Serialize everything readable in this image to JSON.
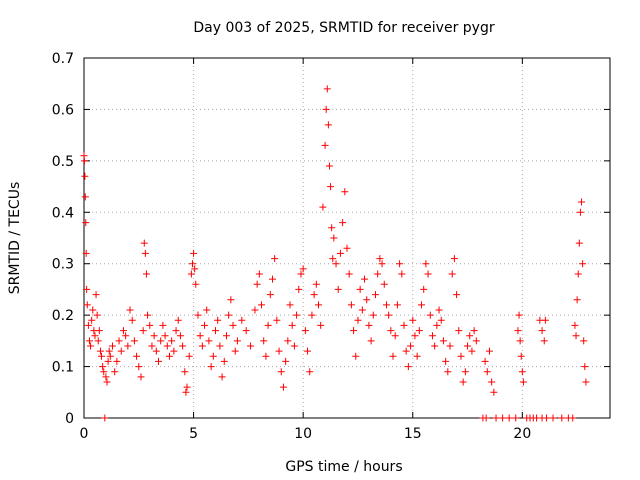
{
  "chart_data": {
    "type": "scatter",
    "title": "Day 003 of 2025, SRMTID for receiver pygr",
    "xlabel": "GPS time / hours",
    "ylabel": "SRMTID / TECUs",
    "xlim": [
      0,
      24
    ],
    "ylim": [
      0,
      0.7
    ],
    "grid": true,
    "x_ticks": [
      0,
      5,
      10,
      15,
      20
    ],
    "y_ticks": [
      0,
      0.1,
      0.2,
      0.3,
      0.4,
      0.5,
      0.6,
      0.7
    ],
    "marker": "+",
    "marker_color": "#ff0000",
    "series": [
      {
        "name": "SRMTID",
        "points": [
          [
            0.0,
            0.51
          ],
          [
            0.02,
            0.5
          ],
          [
            0.04,
            0.47
          ],
          [
            0.06,
            0.43
          ],
          [
            0.08,
            0.38
          ],
          [
            0.1,
            0.32
          ],
          [
            0.12,
            0.25
          ],
          [
            0.15,
            0.22
          ],
          [
            0.2,
            0.18
          ],
          [
            0.25,
            0.15
          ],
          [
            0.3,
            0.14
          ],
          [
            0.35,
            0.19
          ],
          [
            0.4,
            0.21
          ],
          [
            0.45,
            0.17
          ],
          [
            0.5,
            0.16
          ],
          [
            0.55,
            0.24
          ],
          [
            0.6,
            0.2
          ],
          [
            0.65,
            0.15
          ],
          [
            0.7,
            0.17
          ],
          [
            0.75,
            0.13
          ],
          [
            0.8,
            0.12
          ],
          [
            0.85,
            0.1
          ],
          [
            0.9,
            0.09
          ],
          [
            0.95,
            0.0
          ],
          [
            1.0,
            0.08
          ],
          [
            1.05,
            0.07
          ],
          [
            1.1,
            0.11
          ],
          [
            1.15,
            0.13
          ],
          [
            1.2,
            0.12
          ],
          [
            1.3,
            0.14
          ],
          [
            1.4,
            0.09
          ],
          [
            1.5,
            0.11
          ],
          [
            1.6,
            0.15
          ],
          [
            1.7,
            0.13
          ],
          [
            1.8,
            0.17
          ],
          [
            1.9,
            0.16
          ],
          [
            2.0,
            0.14
          ],
          [
            2.1,
            0.21
          ],
          [
            2.2,
            0.19
          ],
          [
            2.3,
            0.15
          ],
          [
            2.4,
            0.12
          ],
          [
            2.5,
            0.1
          ],
          [
            2.6,
            0.08
          ],
          [
            2.7,
            0.17
          ],
          [
            2.75,
            0.34
          ],
          [
            2.8,
            0.32
          ],
          [
            2.85,
            0.28
          ],
          [
            2.9,
            0.2
          ],
          [
            3.0,
            0.18
          ],
          [
            3.1,
            0.14
          ],
          [
            3.2,
            0.16
          ],
          [
            3.3,
            0.13
          ],
          [
            3.4,
            0.11
          ],
          [
            3.5,
            0.15
          ],
          [
            3.6,
            0.18
          ],
          [
            3.7,
            0.16
          ],
          [
            3.8,
            0.14
          ],
          [
            3.9,
            0.12
          ],
          [
            4.0,
            0.15
          ],
          [
            4.1,
            0.13
          ],
          [
            4.2,
            0.17
          ],
          [
            4.3,
            0.19
          ],
          [
            4.4,
            0.16
          ],
          [
            4.5,
            0.14
          ],
          [
            4.6,
            0.09
          ],
          [
            4.65,
            0.05
          ],
          [
            4.7,
            0.06
          ],
          [
            4.8,
            0.12
          ],
          [
            4.9,
            0.28
          ],
          [
            4.95,
            0.3
          ],
          [
            5.0,
            0.32
          ],
          [
            5.05,
            0.29
          ],
          [
            5.1,
            0.26
          ],
          [
            5.2,
            0.2
          ],
          [
            5.3,
            0.16
          ],
          [
            5.4,
            0.14
          ],
          [
            5.5,
            0.18
          ],
          [
            5.6,
            0.21
          ],
          [
            5.7,
            0.15
          ],
          [
            5.8,
            0.1
          ],
          [
            5.9,
            0.12
          ],
          [
            6.0,
            0.17
          ],
          [
            6.1,
            0.19
          ],
          [
            6.2,
            0.14
          ],
          [
            6.3,
            0.08
          ],
          [
            6.4,
            0.11
          ],
          [
            6.5,
            0.16
          ],
          [
            6.6,
            0.2
          ],
          [
            6.7,
            0.23
          ],
          [
            6.8,
            0.18
          ],
          [
            6.9,
            0.13
          ],
          [
            7.0,
            0.15
          ],
          [
            7.2,
            0.19
          ],
          [
            7.4,
            0.17
          ],
          [
            7.6,
            0.14
          ],
          [
            7.8,
            0.21
          ],
          [
            7.9,
            0.26
          ],
          [
            8.0,
            0.28
          ],
          [
            8.1,
            0.22
          ],
          [
            8.2,
            0.15
          ],
          [
            8.3,
            0.12
          ],
          [
            8.4,
            0.18
          ],
          [
            8.5,
            0.24
          ],
          [
            8.6,
            0.27
          ],
          [
            8.7,
            0.31
          ],
          [
            8.8,
            0.19
          ],
          [
            8.9,
            0.13
          ],
          [
            9.0,
            0.09
          ],
          [
            9.1,
            0.06
          ],
          [
            9.2,
            0.11
          ],
          [
            9.3,
            0.15
          ],
          [
            9.4,
            0.22
          ],
          [
            9.5,
            0.18
          ],
          [
            9.6,
            0.14
          ],
          [
            9.7,
            0.2
          ],
          [
            9.8,
            0.25
          ],
          [
            9.9,
            0.28
          ],
          [
            10.0,
            0.29
          ],
          [
            10.1,
            0.17
          ],
          [
            10.2,
            0.13
          ],
          [
            10.3,
            0.09
          ],
          [
            10.4,
            0.2
          ],
          [
            10.5,
            0.24
          ],
          [
            10.6,
            0.26
          ],
          [
            10.7,
            0.22
          ],
          [
            10.8,
            0.18
          ],
          [
            10.9,
            0.41
          ],
          [
            11.0,
            0.53
          ],
          [
            11.05,
            0.6
          ],
          [
            11.1,
            0.64
          ],
          [
            11.15,
            0.57
          ],
          [
            11.2,
            0.49
          ],
          [
            11.25,
            0.45
          ],
          [
            11.3,
            0.37
          ],
          [
            11.35,
            0.31
          ],
          [
            11.4,
            0.35
          ],
          [
            11.5,
            0.3
          ],
          [
            11.6,
            0.25
          ],
          [
            11.7,
            0.32
          ],
          [
            11.8,
            0.38
          ],
          [
            11.9,
            0.44
          ],
          [
            12.0,
            0.33
          ],
          [
            12.1,
            0.28
          ],
          [
            12.2,
            0.22
          ],
          [
            12.3,
            0.17
          ],
          [
            12.4,
            0.12
          ],
          [
            12.5,
            0.19
          ],
          [
            12.6,
            0.25
          ],
          [
            12.7,
            0.21
          ],
          [
            12.8,
            0.27
          ],
          [
            12.9,
            0.23
          ],
          [
            13.0,
            0.18
          ],
          [
            13.1,
            0.15
          ],
          [
            13.2,
            0.2
          ],
          [
            13.3,
            0.24
          ],
          [
            13.4,
            0.28
          ],
          [
            13.5,
            0.31
          ],
          [
            13.6,
            0.3
          ],
          [
            13.7,
            0.26
          ],
          [
            13.8,
            0.22
          ],
          [
            13.9,
            0.2
          ],
          [
            14.0,
            0.17
          ],
          [
            14.1,
            0.12
          ],
          [
            14.2,
            0.16
          ],
          [
            14.3,
            0.22
          ],
          [
            14.4,
            0.3
          ],
          [
            14.5,
            0.28
          ],
          [
            14.6,
            0.18
          ],
          [
            14.7,
            0.13
          ],
          [
            14.8,
            0.1
          ],
          [
            14.9,
            0.14
          ],
          [
            15.0,
            0.19
          ],
          [
            15.1,
            0.16
          ],
          [
            15.2,
            0.12
          ],
          [
            15.3,
            0.17
          ],
          [
            15.4,
            0.22
          ],
          [
            15.5,
            0.25
          ],
          [
            15.6,
            0.3
          ],
          [
            15.7,
            0.28
          ],
          [
            15.8,
            0.2
          ],
          [
            15.9,
            0.16
          ],
          [
            16.0,
            0.14
          ],
          [
            16.1,
            0.18
          ],
          [
            16.2,
            0.21
          ],
          [
            16.3,
            0.19
          ],
          [
            16.4,
            0.15
          ],
          [
            16.5,
            0.11
          ],
          [
            16.6,
            0.09
          ],
          [
            16.7,
            0.14
          ],
          [
            16.8,
            0.28
          ],
          [
            16.9,
            0.31
          ],
          [
            17.0,
            0.24
          ],
          [
            17.1,
            0.17
          ],
          [
            17.2,
            0.12
          ],
          [
            17.3,
            0.07
          ],
          [
            17.4,
            0.09
          ],
          [
            17.5,
            0.14
          ],
          [
            17.6,
            0.16
          ],
          [
            17.7,
            0.13
          ],
          [
            17.8,
            0.17
          ],
          [
            17.9,
            0.15
          ],
          [
            18.3,
            0.11
          ],
          [
            18.4,
            0.09
          ],
          [
            18.5,
            0.13
          ],
          [
            18.6,
            0.07
          ],
          [
            18.7,
            0.05
          ],
          [
            19.8,
            0.17
          ],
          [
            19.85,
            0.2
          ],
          [
            19.9,
            0.15
          ],
          [
            19.95,
            0.12
          ],
          [
            20.0,
            0.09
          ],
          [
            20.05,
            0.07
          ],
          [
            20.8,
            0.19
          ],
          [
            20.9,
            0.17
          ],
          [
            21.0,
            0.15
          ],
          [
            21.05,
            0.19
          ],
          [
            22.4,
            0.18
          ],
          [
            22.45,
            0.16
          ],
          [
            22.5,
            0.23
          ],
          [
            22.55,
            0.28
          ],
          [
            22.6,
            0.34
          ],
          [
            22.65,
            0.4
          ],
          [
            22.7,
            0.42
          ],
          [
            22.75,
            0.3
          ],
          [
            22.8,
            0.15
          ],
          [
            22.85,
            0.1
          ],
          [
            22.9,
            0.07
          ],
          [
            18.2,
            0.0
          ],
          [
            18.35,
            0.0
          ],
          [
            18.8,
            0.0
          ],
          [
            19.1,
            0.0
          ],
          [
            19.4,
            0.0
          ],
          [
            19.7,
            0.0
          ],
          [
            20.2,
            0.0
          ],
          [
            20.35,
            0.0
          ],
          [
            20.5,
            0.0
          ],
          [
            20.65,
            0.0
          ],
          [
            20.9,
            0.0
          ],
          [
            21.1,
            0.0
          ],
          [
            21.4,
            0.0
          ],
          [
            21.8,
            0.0
          ],
          [
            22.1,
            0.0
          ],
          [
            22.3,
            0.0
          ]
        ]
      }
    ]
  }
}
